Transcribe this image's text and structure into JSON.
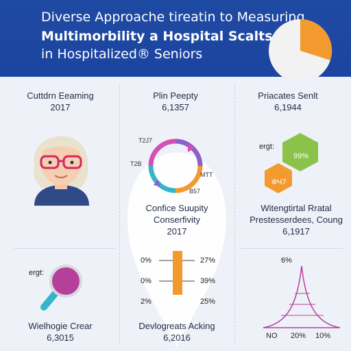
{
  "header": {
    "title_line1": "Diverse Approache tireatin to Measuring",
    "title_line2": "Multimorbility a Hospital Scalts",
    "title_line3": "in Hospitalized® Seniors",
    "pie_colors": {
      "base": "#f2f2f2",
      "slice": "#f39a2e"
    }
  },
  "stats": {
    "col1": {
      "label": "Cuttdrn Eeaming",
      "value": "2017"
    },
    "col2": {
      "label": "Plin Peepty",
      "value": "6,1357"
    },
    "col3": {
      "label": "Priacates Senlt",
      "value": "6,1944"
    }
  },
  "cycle": {
    "labels": {
      "top_left": "T2J7",
      "left": "T2B",
      "right": "MTT",
      "bottom": "B57"
    },
    "colors": [
      "#d64fb4",
      "#36b5c9",
      "#8e5ec9",
      "#f39a2e"
    ],
    "caption_line1": "Confice Suupity",
    "caption_line2": "Conserfivity",
    "caption_value": "2017"
  },
  "hexagons": {
    "tag": "ergt:",
    "green_label": "99%",
    "orange_label": "ФЧ7",
    "caption_line1": "Witengtirtal Rratal",
    "caption_line2": "Prestesserdees, Coung",
    "caption_value": "6,1917"
  },
  "magnifier": {
    "tag": "ergt:",
    "caption_label": "Wielhogie Crear",
    "caption_value": "6,3015"
  },
  "barchart": {
    "left_labels": [
      "0%",
      "0%",
      "2%"
    ],
    "right_labels": [
      "27%",
      "39%",
      "25%"
    ],
    "caption_label": "Devlogreats Acking",
    "caption_value": "6,2016"
  },
  "linechart": {
    "top_label": "6%",
    "bottom_labels": [
      "NO",
      "20%",
      "10%"
    ]
  }
}
